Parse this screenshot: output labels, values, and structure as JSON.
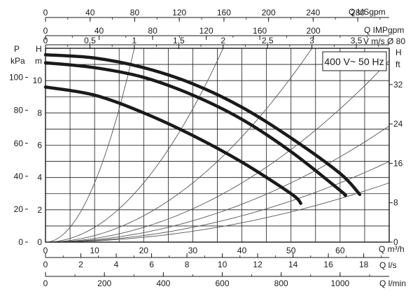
{
  "chart_data": {
    "type": "line",
    "badge": "400 V~ 50 Hz",
    "grid": true,
    "primary_x": {
      "label": "Q m³/h",
      "range": [
        0,
        70
      ],
      "ticks": [
        "0",
        "10",
        "20",
        "30",
        "40",
        "50",
        "60"
      ]
    },
    "left_y_head": {
      "label": "H m",
      "range": [
        0,
        12
      ],
      "ticks": [
        "0",
        "2",
        "4",
        "6",
        "8",
        "10"
      ]
    },
    "left_y_pressure": {
      "label": "P kPa",
      "range": [
        0,
        117.7
      ],
      "ticks": [
        "0",
        "20",
        "40",
        "60",
        "80",
        "100"
      ]
    },
    "right_y_feet": {
      "label": "H ft",
      "range": [
        0,
        39.4
      ],
      "ticks": [
        "0",
        "8",
        "16",
        "24",
        "32"
      ]
    },
    "top_axes": [
      {
        "label": "Q USgpm",
        "range": [
          0,
          308.2
        ],
        "ticks": [
          "0",
          "40",
          "80",
          "120",
          "160",
          "200",
          "240",
          "280"
        ]
      },
      {
        "label": "Q IMPgpm",
        "range": [
          0,
          256.6
        ],
        "ticks": [
          "0",
          "40",
          "80",
          "120",
          "160",
          "200"
        ]
      },
      {
        "label": "V m/s Ø 80",
        "range": [
          0,
          3.87
        ],
        "ticks": [
          "0",
          "0,5",
          "1",
          "1,5",
          "2",
          "2,5",
          "3",
          "3,5"
        ]
      }
    ],
    "bottom_axes": [
      {
        "label": "Q l/s",
        "range": [
          0,
          19.44
        ],
        "ticks": [
          "0",
          "2",
          "4",
          "6",
          "8",
          "10",
          "12",
          "14",
          "16",
          "18"
        ]
      },
      {
        "label": "Q l/min",
        "range": [
          0,
          1166.7
        ],
        "ticks": [
          "0",
          "200",
          "400",
          "600",
          "800",
          "1000"
        ]
      }
    ],
    "velocity_lines": [
      {
        "v": 1,
        "label": "1"
      },
      {
        "v": 2,
        "label": "2"
      },
      {
        "v": 3,
        "label": "3"
      },
      {
        "v": 4,
        "label": ""
      },
      {
        "v": 5,
        "label": ""
      },
      {
        "v": 6,
        "label": ""
      },
      {
        "v": 7,
        "label": ""
      }
    ],
    "series": [
      {
        "x": [
          0,
          10,
          20,
          30,
          40,
          50,
          60,
          64
        ],
        "y": [
          11.6,
          11.4,
          10.8,
          9.8,
          8.35,
          6.45,
          4.25,
          2.95
        ]
      },
      {
        "x": [
          0,
          10,
          20,
          30,
          40,
          50,
          60,
          61
        ],
        "y": [
          11.1,
          10.8,
          10.2,
          9.1,
          7.6,
          5.6,
          3.2,
          2.9
        ]
      },
      {
        "x": [
          0,
          10,
          20,
          30,
          40,
          50,
          52
        ],
        "y": [
          9.6,
          9.1,
          8.0,
          6.6,
          4.95,
          3.0,
          2.4
        ]
      }
    ]
  }
}
